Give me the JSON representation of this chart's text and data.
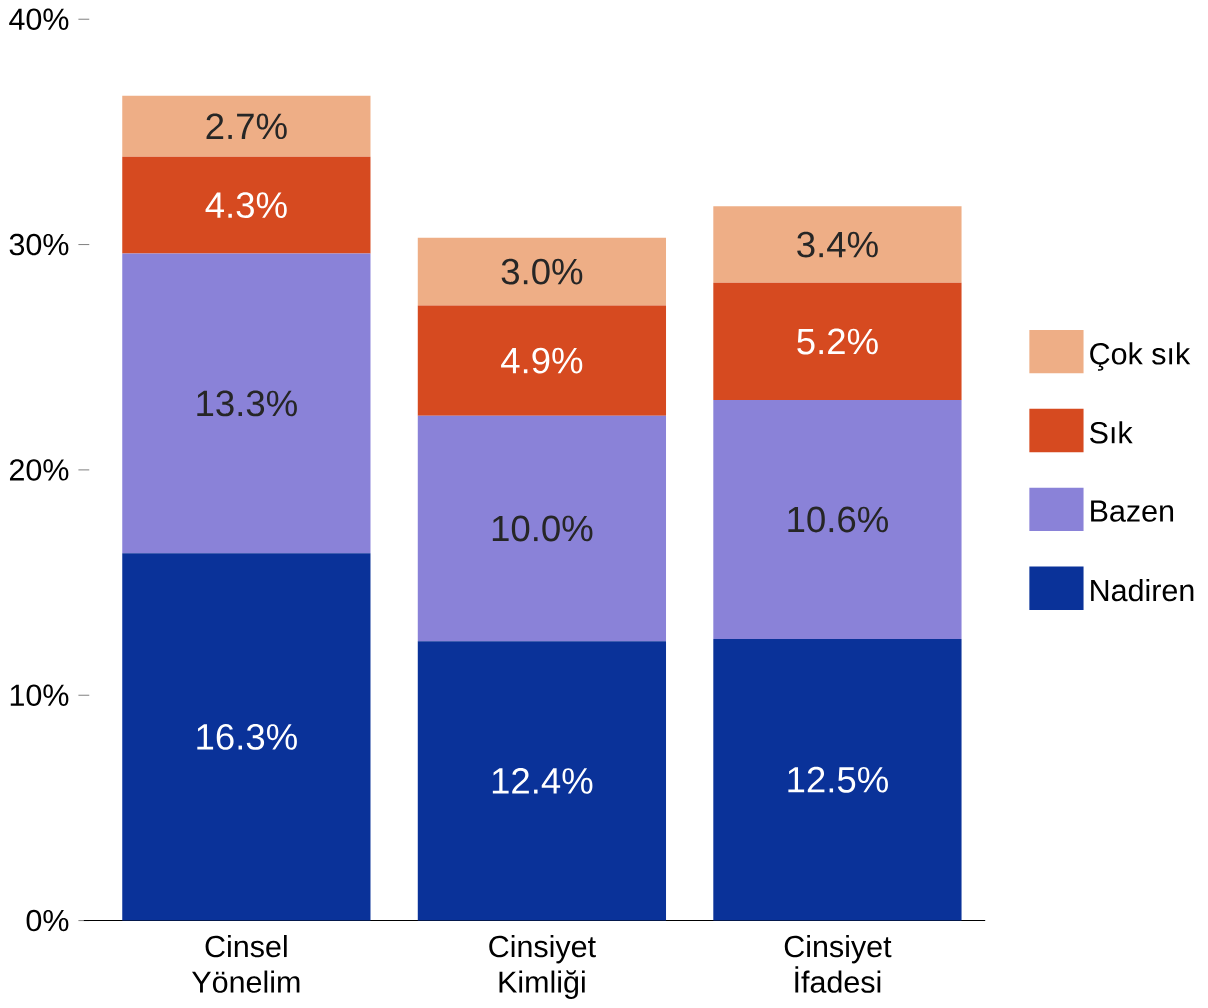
{
  "chart_data": {
    "type": "bar",
    "stacked": true,
    "categories": [
      "Cinsel Yönelim",
      "Cinsiyet Kimliği",
      "Cinsiyet İfadesi"
    ],
    "series": [
      {
        "name": "Nadiren",
        "color": "#0a3299",
        "values": [
          16.3,
          12.4,
          12.5
        ],
        "value_labels": [
          "16.3%",
          "12.4%",
          "12.5%"
        ]
      },
      {
        "name": "Bazen",
        "color": "#8a82d8",
        "values": [
          13.3,
          10.0,
          10.6
        ],
        "value_labels": [
          "13.3%",
          "10.0%",
          "10.6%"
        ]
      },
      {
        "name": "Sık",
        "color": "#d64a20",
        "values": [
          4.3,
          4.9,
          5.2
        ],
        "value_labels": [
          "4.3%",
          "4.9%",
          "5.2%"
        ]
      },
      {
        "name": "Çok sık",
        "color": "#eeae86",
        "values": [
          2.7,
          3.0,
          3.4
        ],
        "value_labels": [
          "2.7%",
          "3.0%",
          "3.4%"
        ]
      }
    ],
    "ylim": [
      0,
      40
    ],
    "yticks": [
      {
        "value": 0,
        "label": "0%"
      },
      {
        "value": 10,
        "label": "10%"
      },
      {
        "value": 20,
        "label": "20%"
      },
      {
        "value": 30,
        "label": "30%"
      },
      {
        "value": 40,
        "label": "40%"
      }
    ],
    "grid": false,
    "legend": "right"
  }
}
